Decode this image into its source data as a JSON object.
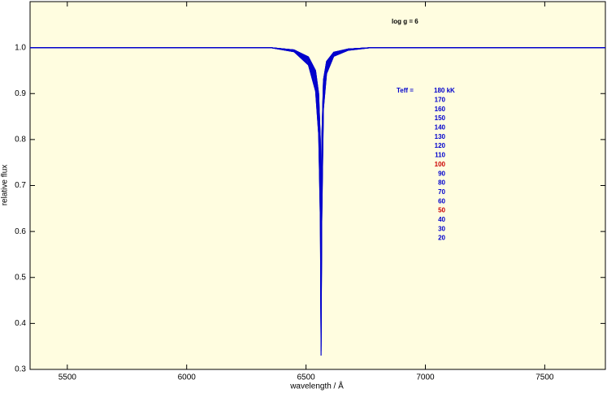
{
  "chart_data": {
    "type": "line",
    "annotation": "log g = 6",
    "legend_title": "Teff =",
    "x_label": "wavelength / Å",
    "y_label": "relative flux",
    "xlim": [
      5344,
      7754
    ],
    "ylim": [
      0.3,
      1.1
    ],
    "xticks": [
      5500,
      6000,
      6500,
      7000,
      7500
    ],
    "yticks": [
      0.3,
      0.4,
      0.5,
      0.6,
      0.7,
      0.8,
      0.9,
      {
        "value": 1,
        "label": "1.0"
      }
    ],
    "x": [
      5344,
      6350,
      6450,
      6510,
      6540,
      6553,
      6560,
      6563,
      6566,
      6573,
      6586,
      6616,
      6676,
      6776,
      7754
    ],
    "series": [
      {
        "name": "180 kK",
        "color": "#0000cc",
        "label_color": "#0000cc",
        "values": [
          1,
          1,
          0.995,
          0.98,
          0.95,
          0.9,
          0.8,
          0.6,
          0.8,
          0.93,
          0.97,
          0.99,
          0.997,
          1,
          1
        ]
      },
      {
        "name": "170",
        "color": "#0000cc",
        "label_color": "#0000cc",
        "values": [
          1,
          1,
          0.995,
          0.98,
          0.95,
          0.9,
          0.8,
          0.58,
          0.8,
          0.93,
          0.97,
          0.99,
          0.997,
          1,
          1
        ]
      },
      {
        "name": "160",
        "color": "#0000cc",
        "label_color": "#0000cc",
        "values": [
          1,
          1,
          0.995,
          0.979,
          0.948,
          0.895,
          0.79,
          0.56,
          0.79,
          0.927,
          0.969,
          0.99,
          0.997,
          1,
          1
        ]
      },
      {
        "name": "150",
        "color": "#0000cc",
        "label_color": "#0000cc",
        "values": [
          1,
          1,
          0.995,
          0.978,
          0.945,
          0.89,
          0.78,
          0.54,
          0.78,
          0.923,
          0.967,
          0.989,
          0.997,
          1,
          1
        ]
      },
      {
        "name": "140",
        "color": "#0000cc",
        "label_color": "#0000cc",
        "values": [
          1,
          1,
          0.995,
          0.978,
          0.945,
          0.89,
          0.78,
          0.52,
          0.78,
          0.923,
          0.967,
          0.989,
          0.997,
          1,
          1
        ]
      },
      {
        "name": "130",
        "color": "#0000cc",
        "label_color": "#0000cc",
        "values": [
          1,
          1,
          0.994,
          0.977,
          0.943,
          0.885,
          0.77,
          0.5,
          0.77,
          0.92,
          0.966,
          0.989,
          0.997,
          1,
          1
        ]
      },
      {
        "name": "120",
        "color": "#0000cc",
        "label_color": "#0000cc",
        "values": [
          1,
          1,
          0.994,
          0.976,
          0.94,
          0.88,
          0.76,
          0.48,
          0.76,
          0.916,
          0.964,
          0.988,
          0.996,
          1,
          1
        ]
      },
      {
        "name": "110",
        "color": "#0000cc",
        "label_color": "#0000cc",
        "values": [
          1,
          1,
          0.994,
          0.975,
          0.938,
          0.875,
          0.75,
          0.46,
          0.75,
          0.913,
          0.963,
          0.988,
          0.996,
          1,
          1
        ]
      },
      {
        "name": "100",
        "color": "#0000cc",
        "label_color": "#cc0000",
        "values": [
          1,
          1,
          0.994,
          0.974,
          0.935,
          0.87,
          0.74,
          0.44,
          0.74,
          0.909,
          0.961,
          0.987,
          0.996,
          1,
          1
        ]
      },
      {
        "name": "90",
        "color": "#0000cc",
        "label_color": "#0000cc",
        "values": [
          1,
          1,
          0.993,
          0.973,
          0.933,
          0.865,
          0.73,
          0.42,
          0.73,
          0.906,
          0.96,
          0.987,
          0.996,
          1,
          1
        ]
      },
      {
        "name": "80",
        "color": "#0000cc",
        "label_color": "#0000cc",
        "values": [
          1,
          1,
          0.993,
          0.972,
          0.93,
          0.86,
          0.72,
          0.4,
          0.72,
          0.902,
          0.958,
          0.986,
          0.996,
          1,
          1
        ]
      },
      {
        "name": "70",
        "color": "#0000cc",
        "label_color": "#0000cc",
        "values": [
          1,
          1,
          0.993,
          0.97,
          0.925,
          0.85,
          0.7,
          0.38,
          0.7,
          0.895,
          0.955,
          0.985,
          0.996,
          1,
          1
        ]
      },
      {
        "name": "60",
        "color": "#0000cc",
        "label_color": "#0000cc",
        "values": [
          1,
          1,
          0.992,
          0.968,
          0.92,
          0.84,
          0.68,
          0.36,
          0.68,
          0.888,
          0.952,
          0.984,
          0.995,
          1,
          1
        ]
      },
      {
        "name": "50",
        "color": "#0000cc",
        "label_color": "#cc0000",
        "values": [
          1,
          1,
          0.992,
          0.966,
          0.915,
          0.83,
          0.66,
          0.35,
          0.66,
          0.881,
          0.949,
          0.983,
          0.995,
          1,
          1
        ]
      },
      {
        "name": "40",
        "color": "#0000cc",
        "label_color": "#0000cc",
        "values": [
          1,
          1,
          0.991,
          0.964,
          0.91,
          0.82,
          0.64,
          0.34,
          0.64,
          0.874,
          0.946,
          0.982,
          0.995,
          1,
          1
        ]
      },
      {
        "name": "30",
        "color": "#0000cc",
        "label_color": "#0000cc",
        "values": [
          1,
          1,
          0.991,
          0.962,
          0.905,
          0.81,
          0.62,
          0.33,
          0.62,
          0.867,
          0.943,
          0.981,
          0.994,
          1,
          1
        ]
      },
      {
        "name": "20",
        "color": "#0000cc",
        "label_color": "#0000cc",
        "values": [
          1,
          1,
          0.991,
          0.962,
          0.905,
          0.81,
          0.62,
          0.33,
          0.62,
          0.867,
          0.943,
          0.981,
          0.994,
          1,
          1
        ]
      }
    ]
  }
}
